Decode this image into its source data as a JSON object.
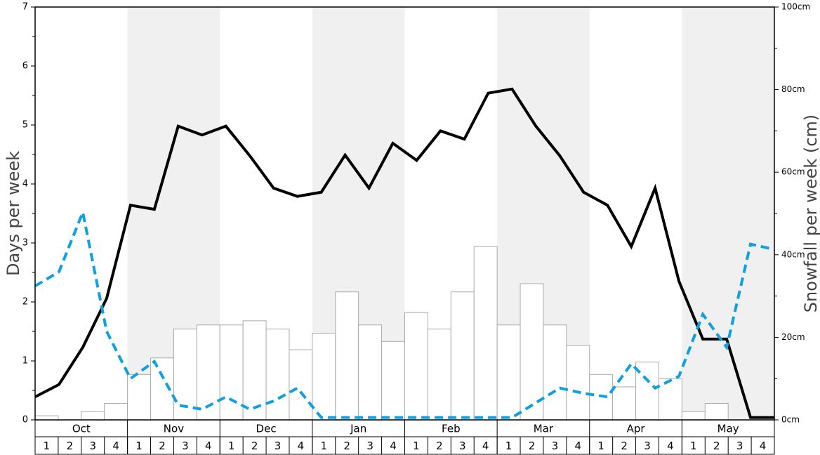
{
  "chart_data": {
    "type": "bar-line",
    "y_label": "Days per week",
    "y2_label": "Snowfall per week (cm)",
    "months": [
      "Oct",
      "Nov",
      "Dec",
      "Jan",
      "Feb",
      "Mar",
      "Apr",
      "May"
    ],
    "categories": [
      "1",
      "2",
      "3",
      "4",
      "1",
      "2",
      "3",
      "4",
      "1",
      "2",
      "3",
      "4",
      "1",
      "2",
      "3",
      "4",
      "1",
      "2",
      "3",
      "4",
      "1",
      "2",
      "3",
      "4",
      "1",
      "2",
      "3",
      "4",
      "1",
      "2",
      "3",
      "4"
    ],
    "ylim": [
      0,
      7
    ],
    "yticks": [
      0,
      1,
      2,
      3,
      4,
      5,
      6,
      7
    ],
    "y2lim": [
      0,
      100
    ],
    "y2ticks": [
      {
        "value": 0,
        "label": "0cm"
      },
      {
        "value": 20,
        "label": "20cm"
      },
      {
        "value": 40,
        "label": "40cm"
      },
      {
        "value": 60,
        "label": "60cm"
      },
      {
        "value": 80,
        "label": "80cm"
      },
      {
        "value": 100,
        "label": "100cm"
      }
    ],
    "series": [
      {
        "kind": "bar",
        "axis": "y2",
        "color": "#ffffff",
        "edge": "#aaaaaa",
        "values": [
          1,
          0,
          2,
          4,
          11,
          15,
          22,
          23,
          23,
          24,
          22,
          17,
          21,
          31,
          23,
          19,
          26,
          22,
          31,
          42,
          23,
          33,
          23,
          18,
          11,
          8,
          14,
          10,
          2,
          4,
          0,
          0
        ]
      },
      {
        "kind": "line",
        "axis": "y",
        "color": "#000000",
        "dashed": false,
        "values": [
          0.39,
          0.6,
          1.23,
          2.06,
          3.64,
          3.57,
          4.98,
          4.83,
          4.98,
          4.48,
          3.93,
          3.79,
          3.86,
          4.49,
          3.93,
          4.69,
          4.4,
          4.9,
          4.76,
          5.54,
          5.61,
          4.98,
          4.48,
          3.86,
          3.64,
          2.94,
          3.93,
          2.35,
          1.37,
          1.37,
          0.04,
          0.04
        ]
      },
      {
        "kind": "line",
        "axis": "y",
        "color": "#10a0e0",
        "dashed": true,
        "values": [
          2.27,
          2.51,
          3.52,
          1.5,
          0.7,
          0.99,
          0.25,
          0.18,
          0.39,
          0.18,
          0.32,
          0.54,
          0.04,
          0.04,
          0.04,
          0.04,
          0.04,
          0.04,
          0.04,
          0.04,
          0.04,
          0.29,
          0.54,
          0.45,
          0.39,
          0.95,
          0.54,
          0.74,
          1.79,
          1.23,
          2.98,
          2.89
        ]
      }
    ]
  }
}
